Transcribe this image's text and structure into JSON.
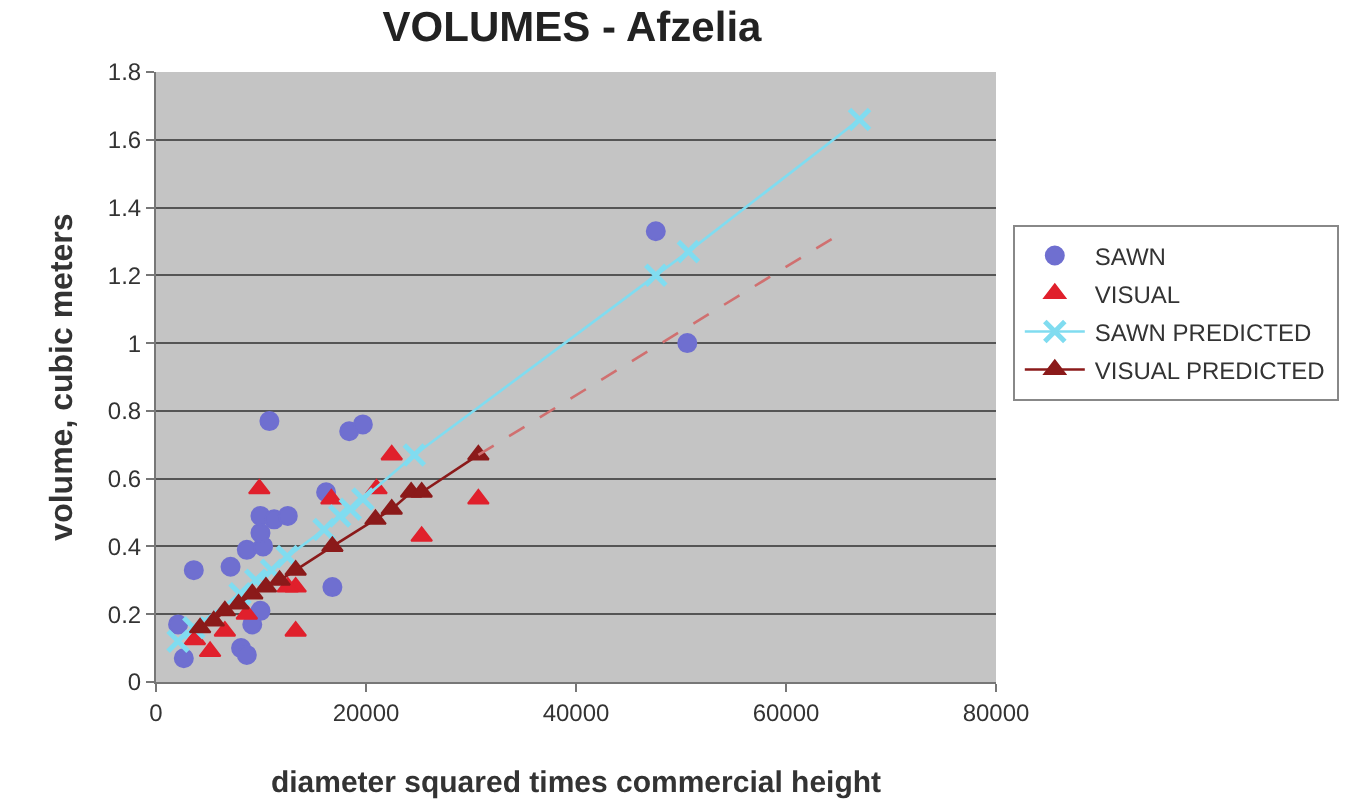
{
  "chart_data": {
    "type": "scatter",
    "title": "VOLUMES - Afzelia",
    "xlabel": "diameter squared times commercial height",
    "ylabel": "volume, cubic meters",
    "xlim": [
      0,
      80000
    ],
    "xticks": [
      0,
      20000,
      40000,
      60000,
      80000
    ],
    "ylim": [
      0,
      1.8
    ],
    "yticks": [
      0,
      0.2,
      0.4,
      0.6,
      0.8,
      1,
      1.2,
      1.4,
      1.6,
      1.8
    ],
    "grid": "y",
    "legend": "right",
    "series": [
      {
        "name": "SAWN",
        "type": "scatter",
        "marker": "circle",
        "color": "#6f6fd0",
        "x": [
          10800,
          18400,
          19700,
          16200,
          9950,
          11250,
          12550,
          3600,
          7100,
          8650,
          10200,
          16800,
          9950,
          9170,
          8100,
          8650,
          2100,
          2650,
          9950,
          47600,
          50600
        ],
        "values": [
          0.77,
          0.74,
          0.76,
          0.56,
          0.49,
          0.48,
          0.49,
          0.33,
          0.34,
          0.39,
          0.4,
          0.28,
          0.21,
          0.17,
          0.1,
          0.08,
          0.17,
          0.07,
          0.44,
          1.33,
          1.0
        ]
      },
      {
        "name": "VISUAL",
        "type": "scatter",
        "marker": "triangle",
        "color": "#e0202c",
        "x": [
          9840,
          22450,
          21000,
          16700,
          25300,
          30700,
          13300,
          13300,
          12550,
          5150,
          6560,
          8650,
          3700
        ],
        "values": [
          0.57,
          0.67,
          0.57,
          0.54,
          0.43,
          0.54,
          0.15,
          0.28,
          0.28,
          0.09,
          0.15,
          0.2,
          0.125
        ]
      },
      {
        "name": "SAWN PREDICTED",
        "type": "line",
        "marker": "cross",
        "line_style": "solid",
        "color": "#80dcf0",
        "x": [
          2100,
          3600,
          8000,
          9500,
          11000,
          12500,
          16000,
          17500,
          18500,
          19700,
          24600,
          47600,
          50700,
          67000
        ],
        "values": [
          0.12,
          0.16,
          0.26,
          0.3,
          0.33,
          0.37,
          0.45,
          0.49,
          0.51,
          0.54,
          0.67,
          1.2,
          1.27,
          1.66
        ]
      },
      {
        "name": "VISUAL PREDICTED",
        "type": "line",
        "marker": "triangle",
        "line_style": "solid",
        "color": "#8b1a1a",
        "x": [
          4200,
          5500,
          6560,
          7860,
          9170,
          10470,
          11770,
          13300,
          16800,
          20900,
          22450,
          24300,
          25300,
          30700
        ],
        "values": [
          0.16,
          0.18,
          0.21,
          0.23,
          0.26,
          0.28,
          0.3,
          0.33,
          0.4,
          0.48,
          0.51,
          0.56,
          0.56,
          0.67
        ]
      },
      {
        "type": "line",
        "marker": "none",
        "line_style": "dashed",
        "color": "#d07070",
        "x": [
          30700,
          64500
        ],
        "values": [
          0.67,
          1.31
        ]
      }
    ]
  }
}
